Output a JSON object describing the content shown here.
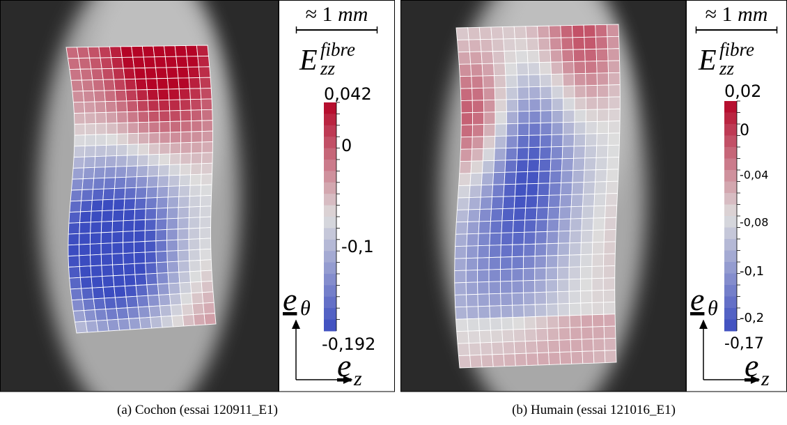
{
  "panels": [
    {
      "scale": {
        "approx": "≈ 1",
        "unit": "mm"
      },
      "variable": {
        "base": "E",
        "sup": "fibre",
        "sub": "zz"
      },
      "colorbar_labels": [
        "0,042",
        "0",
        "-0,1",
        "-0,192"
      ],
      "axes": {
        "symbol": "e",
        "vertical": "θ",
        "horizontal": "z"
      },
      "caption": "(a) Cochon (essai 120911_E1)"
    },
    {
      "scale": {
        "approx": "≈ 1",
        "unit": "mm"
      },
      "variable": {
        "base": "E",
        "sup": "fibre",
        "sub": "zz"
      },
      "colorbar_labels": [
        "0,02",
        "0",
        "-0,04",
        "-0,08",
        "-0,1",
        "-0,2",
        "-0,17"
      ],
      "axes": {
        "symbol": "e",
        "vertical": "θ",
        "horizontal": "z"
      },
      "caption": "(b) Humain (essai 121016_E1)"
    }
  ]
}
